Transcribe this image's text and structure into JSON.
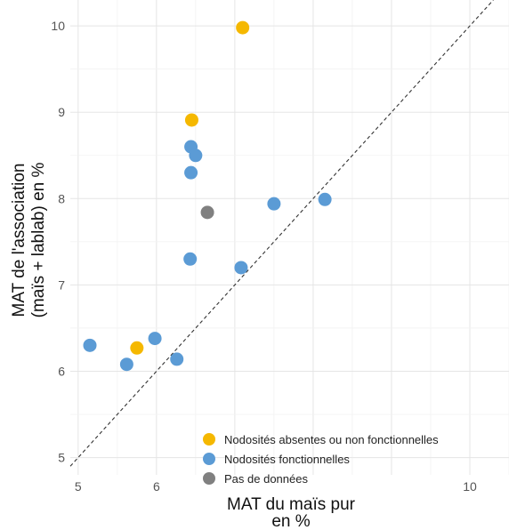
{
  "chart_data": {
    "type": "scatter",
    "title": "",
    "xlabel": [
      "MAT du maïs pur",
      "en %"
    ],
    "ylabel": [
      "MAT de l'association",
      "(maïs + lablab) en %"
    ],
    "xlim": [
      4.9,
      10.5
    ],
    "ylim": [
      4.8,
      10.3
    ],
    "x_ticks": [
      5,
      6,
      10
    ],
    "y_ticks": [
      5,
      6,
      7,
      8,
      9,
      10
    ],
    "grid": true,
    "reference_line": {
      "type": "y=x",
      "style": "dashed"
    },
    "legend_position": "bottom-right",
    "series": [
      {
        "name": "Nodosités absentes ou non fonctionnelles",
        "color": "#F5B800",
        "points": [
          {
            "x": 7.1,
            "y": 9.98
          },
          {
            "x": 6.45,
            "y": 8.91
          },
          {
            "x": 5.75,
            "y": 6.27
          }
        ]
      },
      {
        "name": "Nodosités fonctionnelles",
        "color": "#5B9BD5",
        "points": [
          {
            "x": 6.44,
            "y": 8.6
          },
          {
            "x": 6.5,
            "y": 8.5
          },
          {
            "x": 6.44,
            "y": 8.3
          },
          {
            "x": 7.5,
            "y": 7.94
          },
          {
            "x": 8.15,
            "y": 7.99
          },
          {
            "x": 6.43,
            "y": 7.3
          },
          {
            "x": 7.08,
            "y": 7.2
          },
          {
            "x": 5.15,
            "y": 6.3
          },
          {
            "x": 5.62,
            "y": 6.08
          },
          {
            "x": 5.98,
            "y": 6.38
          },
          {
            "x": 6.26,
            "y": 6.14
          }
        ]
      },
      {
        "name": "Pas de données",
        "color": "#808080",
        "points": [
          {
            "x": 6.65,
            "y": 7.84
          }
        ]
      }
    ]
  }
}
